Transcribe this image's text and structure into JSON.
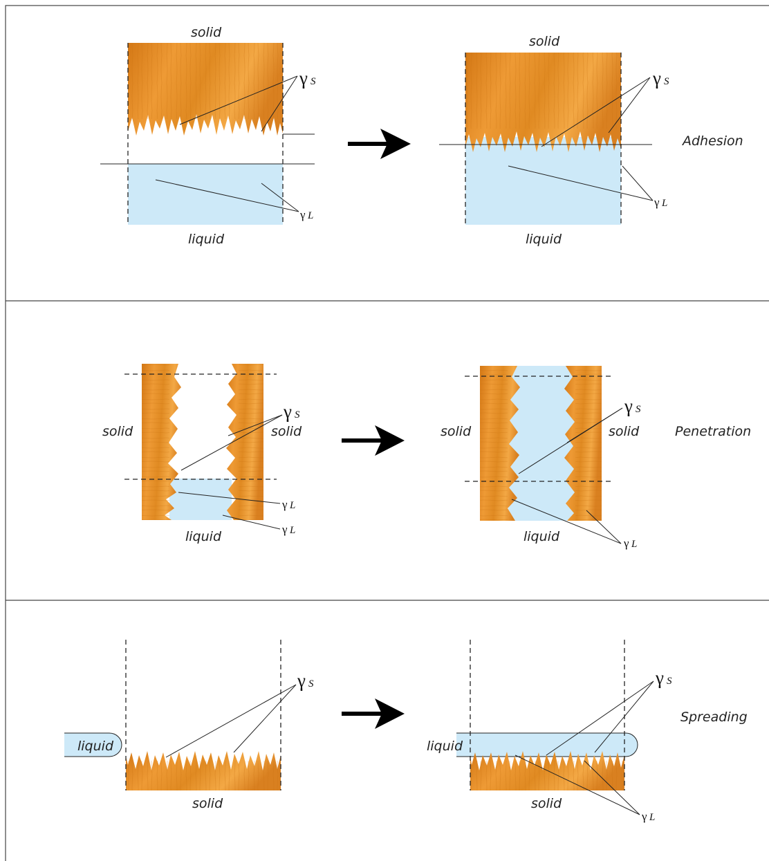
{
  "colors": {
    "solid_wood": "#e08a22",
    "wood_dark": "#c56d12",
    "wood_light": "#f2a540",
    "liquid": "#cde9f8",
    "line": "#222222"
  },
  "labels": {
    "solid": "solid",
    "liquid": "liquid",
    "gamma": "γ",
    "sub_s": "S",
    "sub_l": "L"
  },
  "processes": {
    "adhesion": "Adhesion",
    "penetration": "Penetration",
    "spreading": "Spreading"
  },
  "icons": {
    "arrow": "right-arrow-icon"
  }
}
